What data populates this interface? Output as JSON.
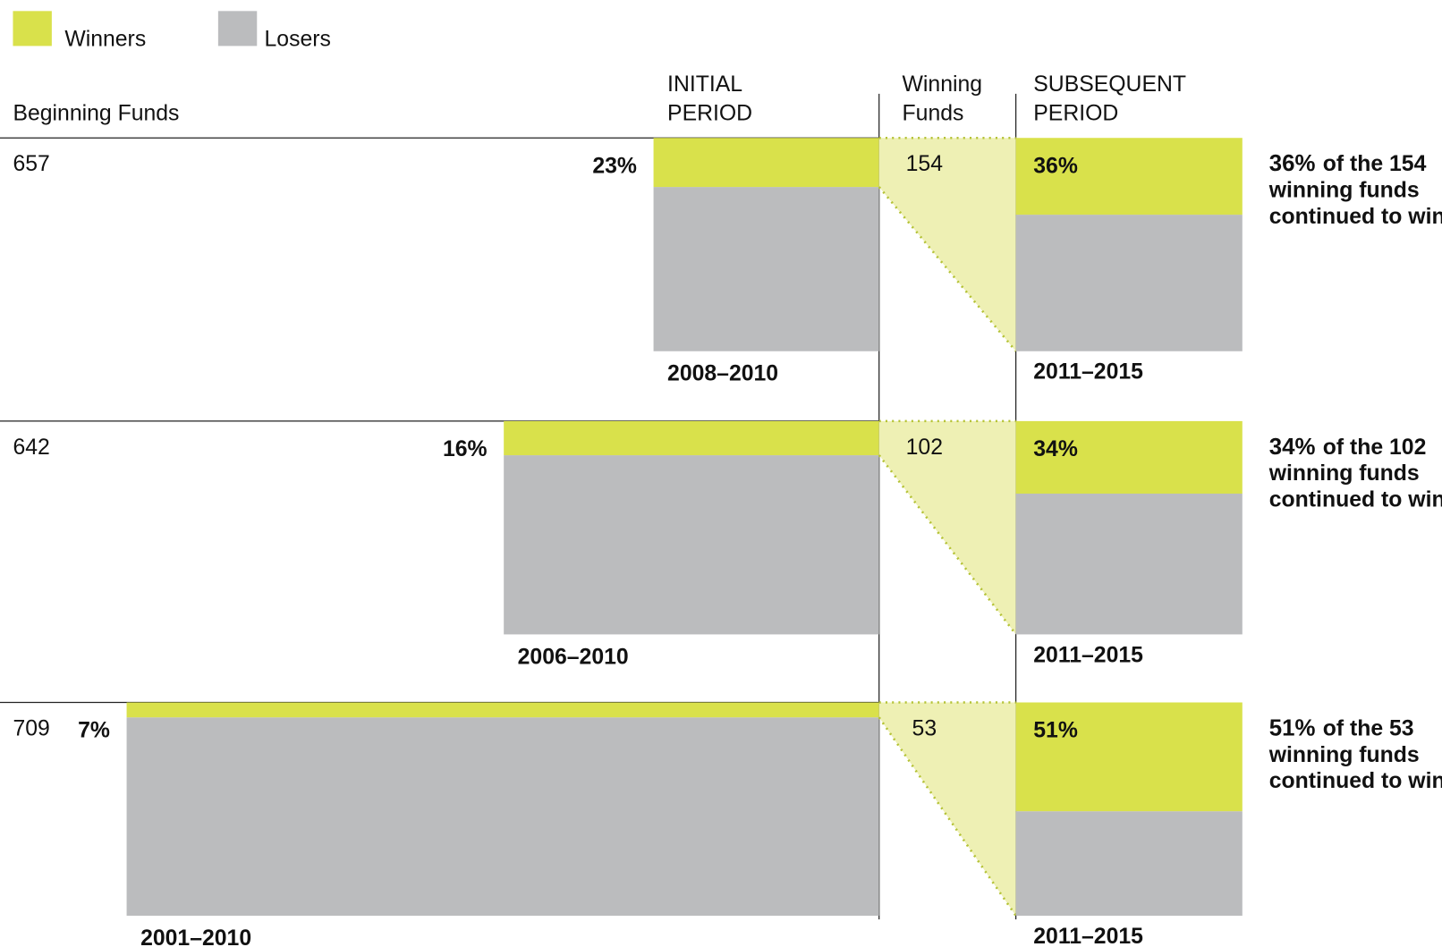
{
  "chart_data": {
    "type": "persistence",
    "legend": [
      {
        "name": "Winners",
        "color": "#d9e14b"
      },
      {
        "name": "Losers",
        "color": "#bbbcbe"
      }
    ],
    "headers": {
      "beginning": [
        "Beginning Funds"
      ],
      "initial": [
        "INITIAL",
        "PERIOD"
      ],
      "winning": [
        "Winning",
        "Funds"
      ],
      "subsequent": [
        "SUBSEQUENT",
        "PERIOD"
      ]
    },
    "rows": [
      {
        "beginning_funds": 657,
        "initial_winners": 23,
        "initial_label": "23%",
        "initial_period": "2008–2010",
        "winning_funds": 154,
        "subsequent_winners": 36,
        "subsequent_label": "36%",
        "subsequent_period": "2011–2015",
        "note": [
          "of the 154",
          "winning funds",
          "continued to win"
        ]
      },
      {
        "beginning_funds": 642,
        "initial_winners": 16,
        "initial_label": "16%",
        "initial_period": "2006–2010",
        "winning_funds": 102,
        "subsequent_winners": 34,
        "subsequent_label": "34%",
        "subsequent_period": "2011–2015",
        "note": [
          "of the 102",
          "winning funds",
          "continued to win"
        ]
      },
      {
        "beginning_funds": 709,
        "initial_winners": 7,
        "initial_label": "7%",
        "initial_period": "2001–2010",
        "winning_funds": 53,
        "subsequent_winners": 51,
        "subsequent_label": "51%",
        "subsequent_period": "2011–2015",
        "note": [
          "of the 53",
          "winning funds",
          "continued to win"
        ]
      }
    ]
  }
}
